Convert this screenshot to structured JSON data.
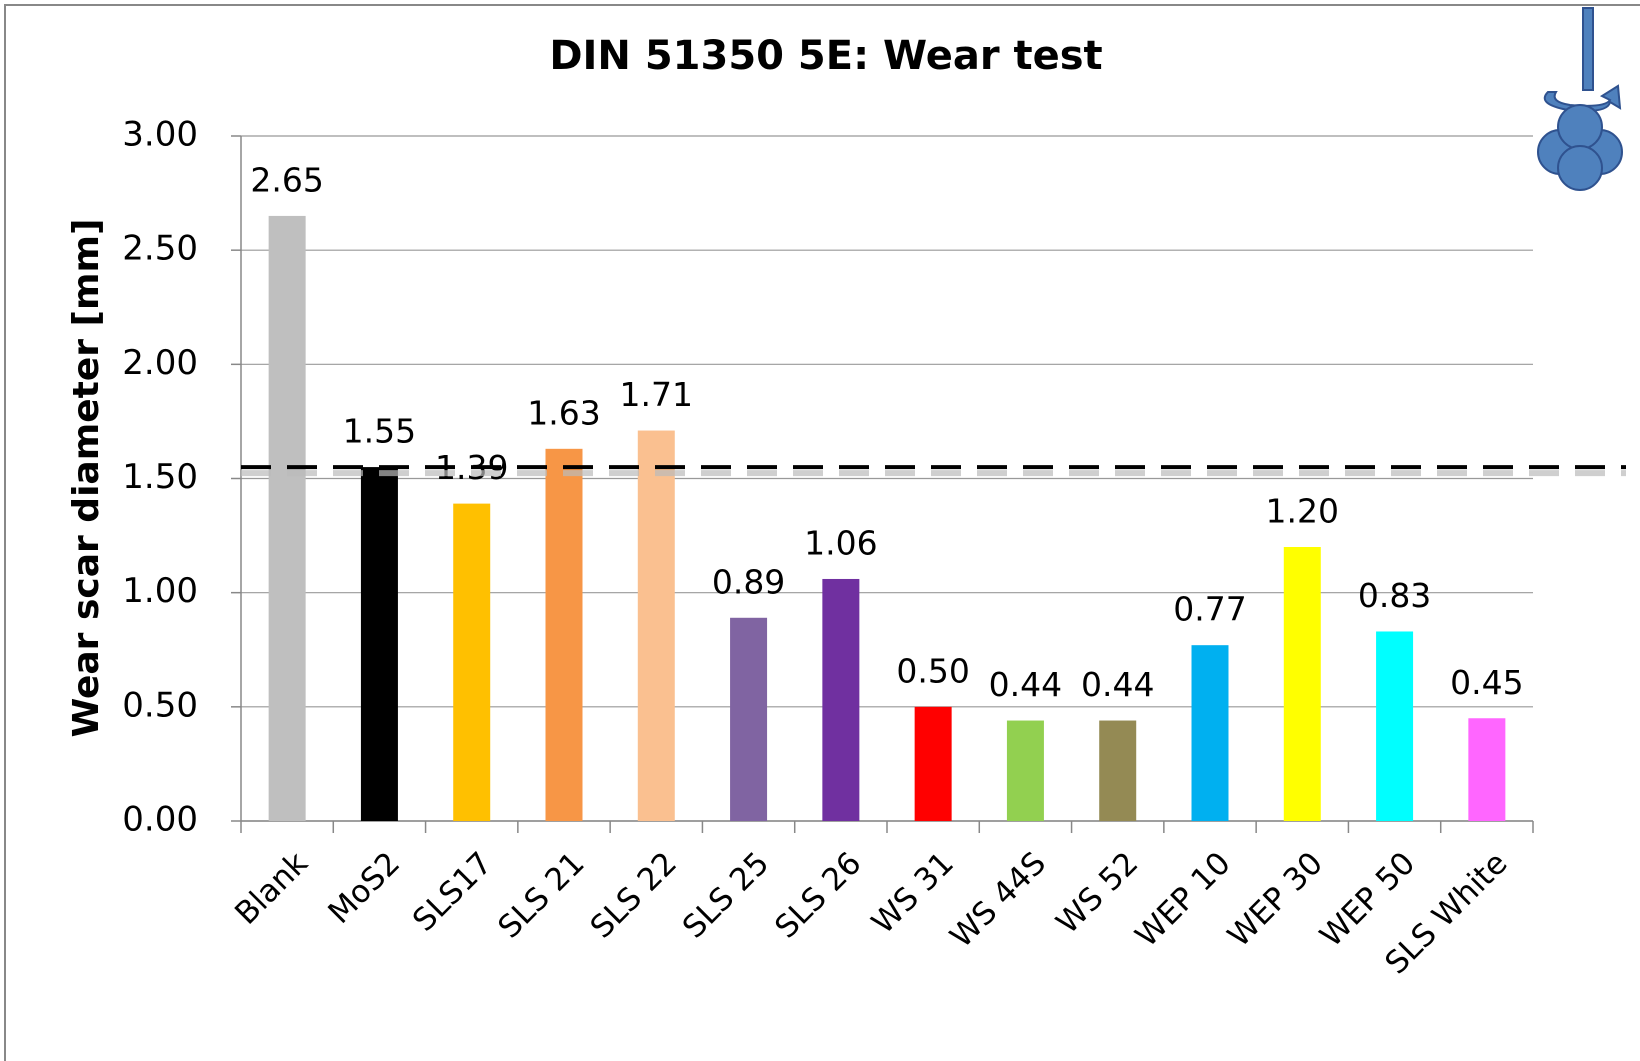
{
  "chart_data": {
    "type": "bar",
    "title": "DIN 51350 5E: Wear test",
    "ylabel": "Wear scar diameter [mm]",
    "categories": [
      "Blank",
      "MoS2",
      "SLS17",
      "SLS 21",
      "SLS 22",
      "SLS 25",
      "SLS 26",
      "WS 31",
      "WS 44S",
      "WS 52",
      "WEP 10",
      "WEP 30",
      "WEP 50",
      "SLS White"
    ],
    "values": [
      2.65,
      1.55,
      1.39,
      1.63,
      1.71,
      0.89,
      1.06,
      0.5,
      0.44,
      0.44,
      0.77,
      1.2,
      0.83,
      0.45
    ],
    "value_labels": [
      "2.65",
      "1.55",
      "1.39",
      "1.63",
      "1.71",
      "0.89",
      "1.06",
      "0.50",
      "0.44",
      "0.44",
      "0.77",
      "1.20",
      "0.83",
      "0.45"
    ],
    "colors": [
      "#bfbfbf",
      "#000000",
      "#ffc000",
      "#f79646",
      "#fac090",
      "#8064a2",
      "#7030a0",
      "#ff0000",
      "#92d050",
      "#948a54",
      "#00b0f0",
      "#ffff00",
      "#00ffff",
      "#ff66ff"
    ],
    "ylim": [
      0,
      3
    ],
    "yticks": [
      {
        "value": 0,
        "label": "0.00"
      },
      {
        "value": 0.5,
        "label": "0.50"
      },
      {
        "value": 1,
        "label": "1.00"
      },
      {
        "value": 1.5,
        "label": "1.50"
      },
      {
        "value": 2,
        "label": "2.00"
      },
      {
        "value": 2.5,
        "label": "2.50"
      },
      {
        "value": 3,
        "label": "3.00"
      }
    ],
    "grid": true,
    "reference_line": 1.55
  }
}
